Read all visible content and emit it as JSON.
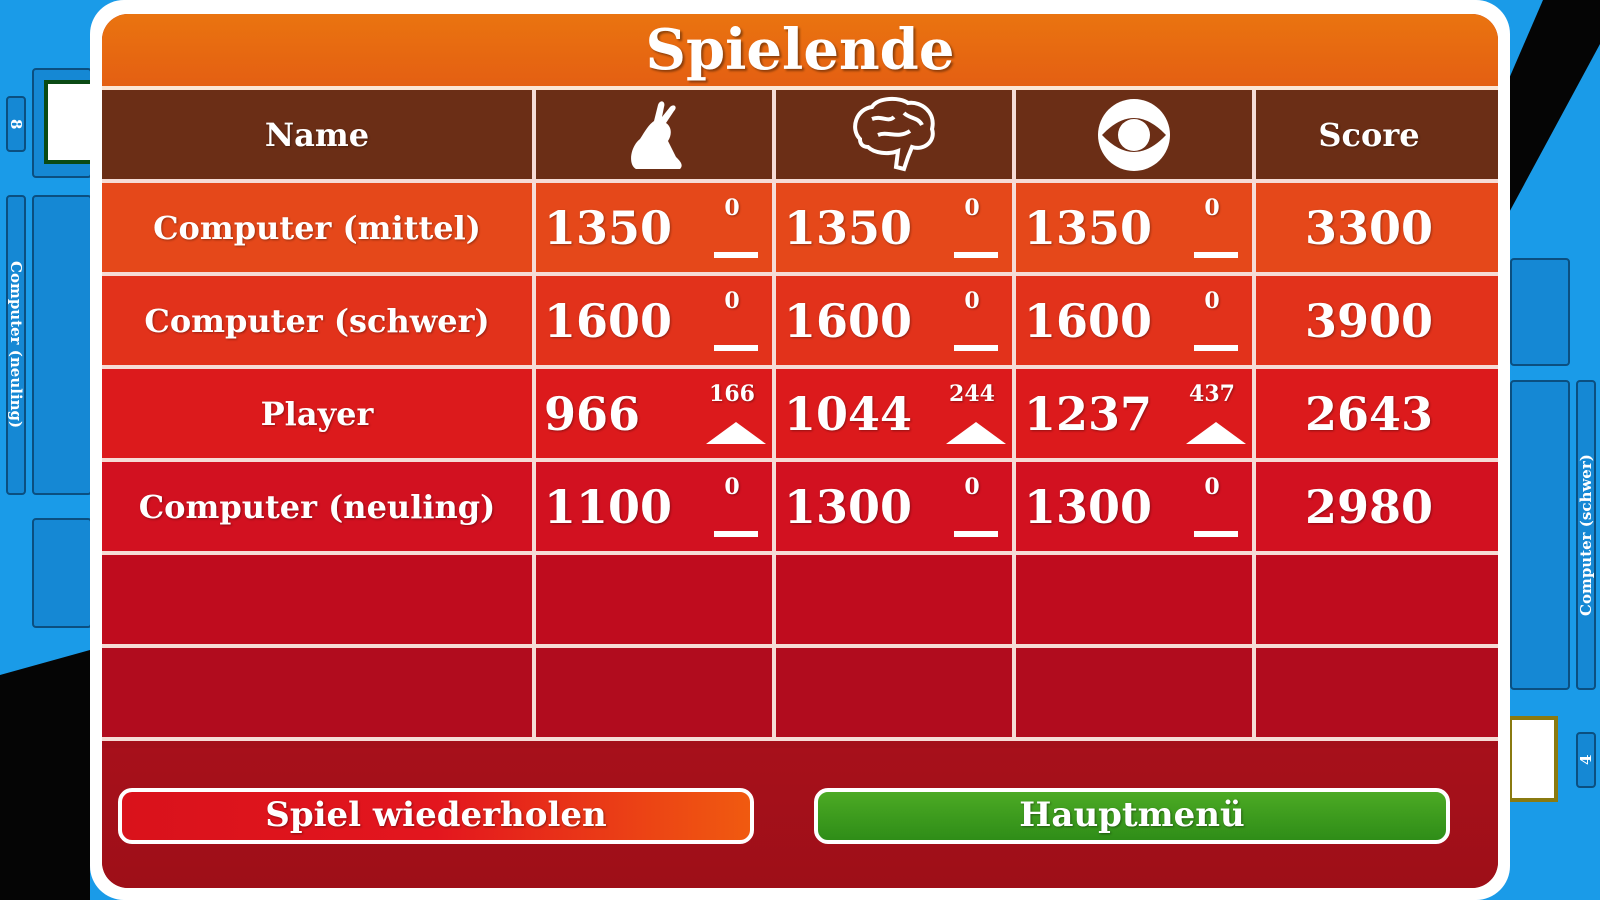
{
  "background": {
    "left_player": {
      "label": "Computer (neuling)",
      "card_count": "8"
    },
    "right_player": {
      "label": "Computer (schwer)",
      "card_count": "4"
    }
  },
  "dialog": {
    "title": "Spielende",
    "columns": [
      {
        "label": "Name"
      },
      {
        "icon": "hare-icon"
      },
      {
        "icon": "brain-icon"
      },
      {
        "icon": "eye-icon"
      },
      {
        "label": "Score"
      }
    ],
    "rows": [
      {
        "name": "Computer (mittel)",
        "cells": [
          {
            "value": "1350",
            "delta": "0",
            "trend": "none"
          },
          {
            "value": "1350",
            "delta": "0",
            "trend": "none"
          },
          {
            "value": "1350",
            "delta": "0",
            "trend": "none"
          }
        ],
        "score": "3300"
      },
      {
        "name": "Computer (schwer)",
        "cells": [
          {
            "value": "1600",
            "delta": "0",
            "trend": "none"
          },
          {
            "value": "1600",
            "delta": "0",
            "trend": "none"
          },
          {
            "value": "1600",
            "delta": "0",
            "trend": "none"
          }
        ],
        "score": "3900"
      },
      {
        "name": "Player",
        "cells": [
          {
            "value": "966",
            "delta": "166",
            "trend": "up"
          },
          {
            "value": "1044",
            "delta": "244",
            "trend": "up"
          },
          {
            "value": "1237",
            "delta": "437",
            "trend": "up"
          }
        ],
        "score": "2643"
      },
      {
        "name": "Computer (neuling)",
        "cells": [
          {
            "value": "1100",
            "delta": "0",
            "trend": "none"
          },
          {
            "value": "1300",
            "delta": "0",
            "trend": "none"
          },
          {
            "value": "1300",
            "delta": "0",
            "trend": "none"
          }
        ],
        "score": "2980"
      }
    ],
    "empty_rows": 2,
    "buttons": {
      "replay": "Spiel wiederholen",
      "main_menu": "Hauptmenü"
    },
    "colors": {
      "title": "#e66a12",
      "header": "#6b2e16",
      "replay": "#d8141c",
      "main_menu": "#3a9a1e"
    }
  }
}
